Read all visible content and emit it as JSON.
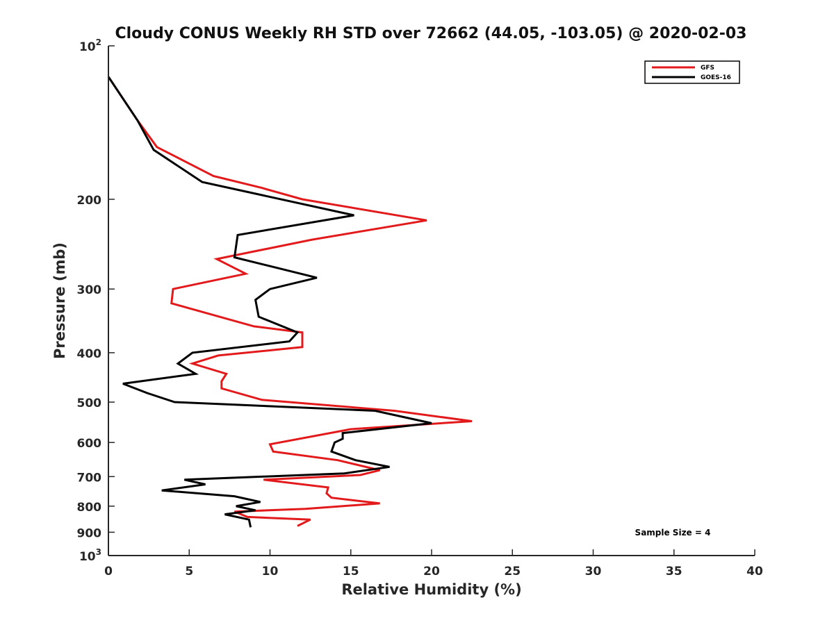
{
  "chart_data": {
    "type": "line",
    "title": "Cloudy CONUS Weekly RH STD over 72662 (44.05, -103.05) @ 2020-02-03",
    "xlabel": "Relative Humidity (%)",
    "ylabel": "Pressure (mb)",
    "xlim": [
      0,
      40
    ],
    "ylim": [
      100,
      1000
    ],
    "yscale": "log",
    "y_reversed": true,
    "grid": false,
    "legend_position": "top-right",
    "x_ticks": [
      "0",
      "5",
      "10",
      "15",
      "20",
      "25",
      "30",
      "35",
      "40"
    ],
    "y_ticks": [
      {
        "value": 100,
        "label": "10",
        "exp": "2"
      },
      {
        "value": 200,
        "label": "200"
      },
      {
        "value": 300,
        "label": "300"
      },
      {
        "value": 400,
        "label": "400"
      },
      {
        "value": 500,
        "label": "500"
      },
      {
        "value": 600,
        "label": "600"
      },
      {
        "value": 700,
        "label": "700"
      },
      {
        "value": 800,
        "label": "800"
      },
      {
        "value": 900,
        "label": "900"
      },
      {
        "value": 1000,
        "label": "10",
        "exp": "3"
      }
    ],
    "annotation": "Sample Size = 4",
    "series": [
      {
        "name": "GFS",
        "color": "#e31a1c",
        "points": [
          [
            0.0,
            115
          ],
          [
            1.8,
            140
          ],
          [
            3.0,
            158
          ],
          [
            6.5,
            180
          ],
          [
            9.5,
            190
          ],
          [
            12.0,
            200
          ],
          [
            19.7,
            220
          ],
          [
            12.6,
            240
          ],
          [
            6.7,
            262
          ],
          [
            8.5,
            280
          ],
          [
            4.0,
            300
          ],
          [
            3.9,
            320
          ],
          [
            9.0,
            355
          ],
          [
            12.0,
            365
          ],
          [
            12.0,
            390
          ],
          [
            6.8,
            405
          ],
          [
            5.2,
            420
          ],
          [
            7.3,
            440
          ],
          [
            7.0,
            455
          ],
          [
            7.0,
            470
          ],
          [
            9.5,
            495
          ],
          [
            17.7,
            520
          ],
          [
            22.5,
            545
          ],
          [
            15.0,
            565
          ],
          [
            10.0,
            605
          ],
          [
            10.2,
            625
          ],
          [
            14.2,
            650
          ],
          [
            16.8,
            680
          ],
          [
            15.6,
            695
          ],
          [
            9.6,
            710
          ],
          [
            13.6,
            735
          ],
          [
            13.5,
            755
          ],
          [
            13.8,
            770
          ],
          [
            16.8,
            790
          ],
          [
            12.2,
            810
          ],
          [
            7.8,
            820
          ],
          [
            8.6,
            840
          ],
          [
            12.5,
            850
          ],
          [
            11.7,
            875
          ]
        ]
      },
      {
        "name": "GOES-16",
        "color": "#000000",
        "points": [
          [
            0.0,
            115
          ],
          [
            1.8,
            140
          ],
          [
            2.8,
            160
          ],
          [
            5.8,
            185
          ],
          [
            15.2,
            215
          ],
          [
            8.0,
            235
          ],
          [
            7.8,
            260
          ],
          [
            12.9,
            285
          ],
          [
            10.0,
            300
          ],
          [
            9.1,
            315
          ],
          [
            9.3,
            340
          ],
          [
            11.7,
            365
          ],
          [
            11.2,
            380
          ],
          [
            5.2,
            400
          ],
          [
            4.3,
            420
          ],
          [
            5.4,
            440
          ],
          [
            0.9,
            460
          ],
          [
            2.4,
            480
          ],
          [
            4.1,
            500
          ],
          [
            16.5,
            520
          ],
          [
            20.0,
            550
          ],
          [
            14.5,
            575
          ],
          [
            14.5,
            590
          ],
          [
            14.0,
            600
          ],
          [
            13.8,
            625
          ],
          [
            15.3,
            650
          ],
          [
            17.4,
            670
          ],
          [
            14.6,
            690
          ],
          [
            4.7,
            710
          ],
          [
            6.0,
            725
          ],
          [
            3.3,
            745
          ],
          [
            7.8,
            765
          ],
          [
            9.4,
            785
          ],
          [
            7.9,
            800
          ],
          [
            9.1,
            815
          ],
          [
            7.2,
            830
          ],
          [
            8.7,
            850
          ],
          [
            8.8,
            880
          ]
        ]
      }
    ]
  }
}
